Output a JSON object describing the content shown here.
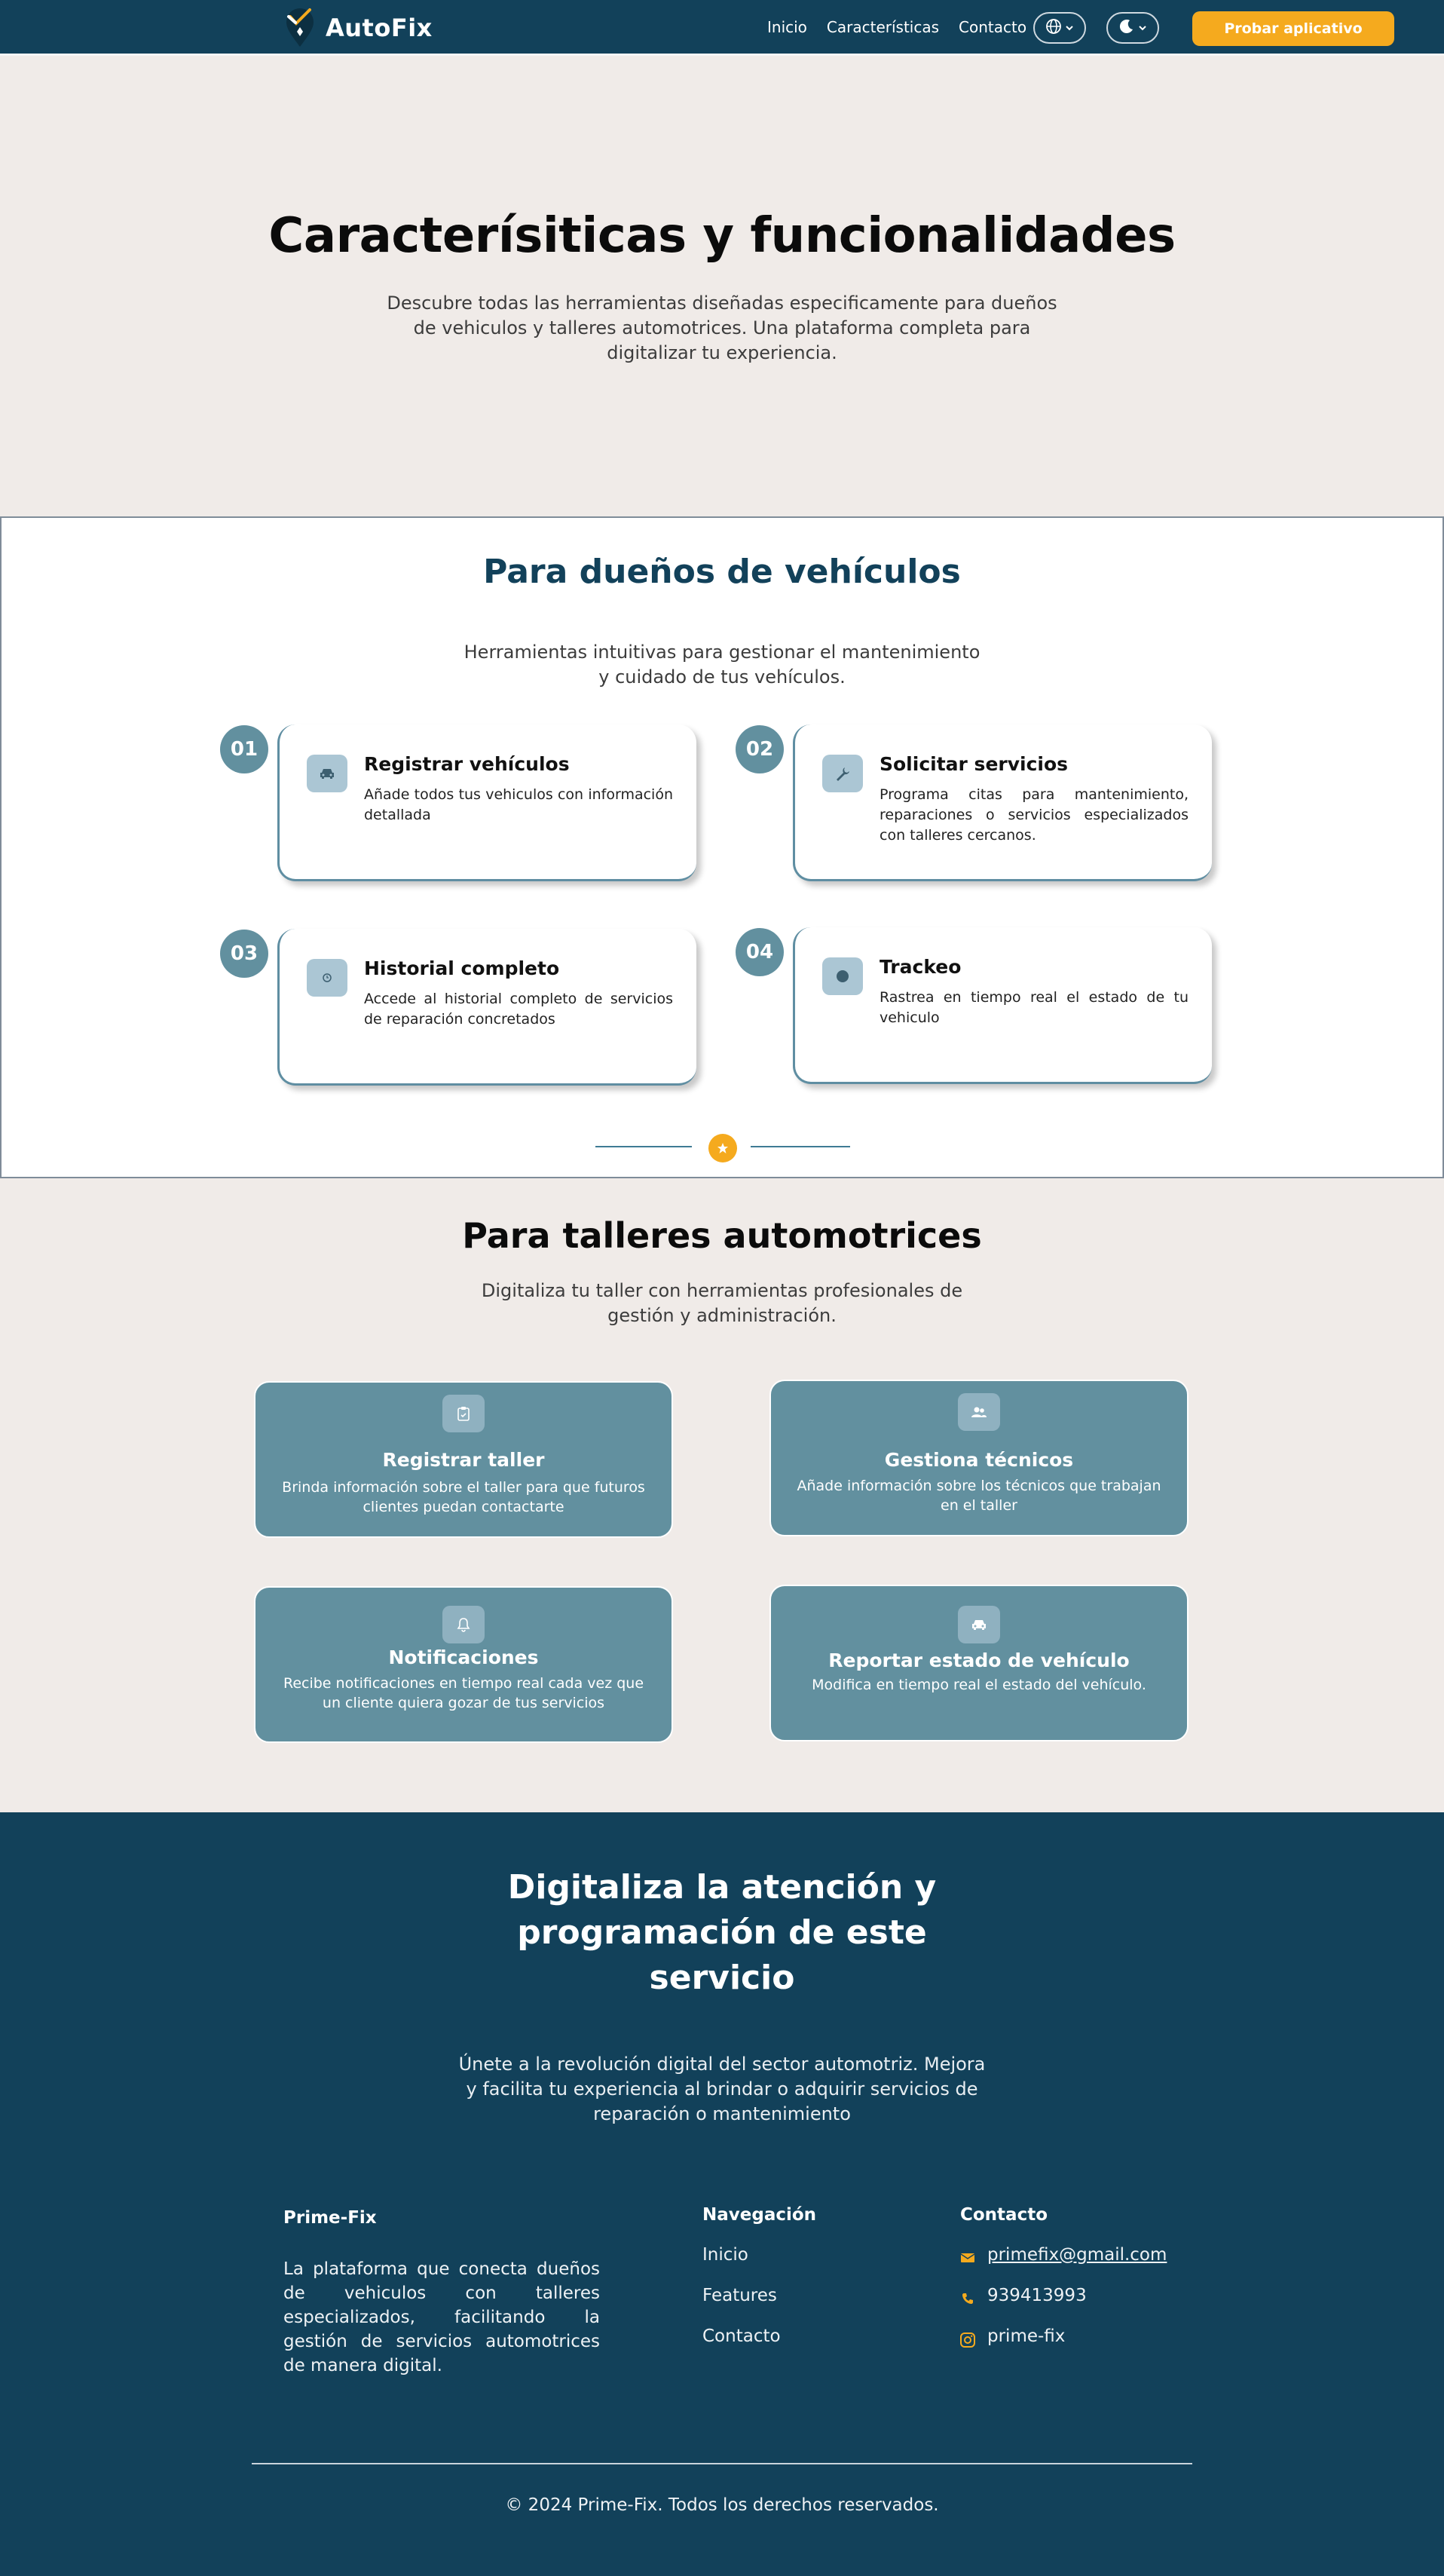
{
  "header": {
    "brand": "AutoFix",
    "nav": [
      "Inicio",
      "Características",
      "Contacto"
    ],
    "cta": "Probar aplicativo",
    "icons": [
      "globe-icon",
      "moon-icon",
      "chevron-down-icon"
    ]
  },
  "hero": {
    "title": "Caracterísiticas y funcionalidades",
    "subtitle": "Descubre todas las herramientas diseñadas especificamente para dueños de vehiculos y talleres automotrices. Una plataforma completa para digitalizar tu experiencia."
  },
  "owners": {
    "title": "Para dueños de vehículos",
    "subtitle": "Herramientas intuitivas para gestionar el mantenimiento y cuidado de tus vehículos.",
    "cards": [
      {
        "num": "01",
        "icon": "car-icon",
        "title": "Registrar vehículos",
        "desc": "Añade todos tus vehiculos con información detallada"
      },
      {
        "num": "02",
        "icon": "wrench-icon",
        "title": "Solicitar servicios",
        "desc": "Programa citas para mantenimiento, reparaciones o servicios especializados con talleres cercanos."
      },
      {
        "num": "03",
        "icon": "clock-icon",
        "title": "Historial completo",
        "desc": "Accede al historial completo de servicios de reparación concretados"
      },
      {
        "num": "04",
        "icon": "location-dot-icon",
        "title": "Trackeo",
        "desc": "Rastrea en tiempo real el estado de tu vehiculo"
      }
    ]
  },
  "workshops": {
    "title": "Para talleres automotrices",
    "subtitle": "Digitaliza tu taller con herramientas profesionales de gestión y administración.",
    "cards": [
      {
        "icon": "clipboard-icon",
        "title": "Registrar taller",
        "desc": "Brinda información sobre el taller para que futuros clientes puedan contactarte"
      },
      {
        "icon": "users-icon",
        "title": "Gestiona técnicos",
        "desc": "Añade información sobre los técnicos que trabajan en el taller"
      },
      {
        "icon": "bell-icon",
        "title": "Notificaciones",
        "desc": "Recibe notificaciones en tiempo real cada vez que un cliente quiera gozar de tus servicios"
      },
      {
        "icon": "car-icon",
        "title": "Reportar estado de vehículo",
        "desc": "Modifica en tiempo real el estado del vehículo."
      }
    ]
  },
  "footer": {
    "cta_title": "Digitaliza la atención y programación de este servicio",
    "cta_subtitle": "Únete a la revolución digital del sector automotriz. Mejora y facilita tu experiencia al brindar o adquirir servicios de reparación o mantenimiento",
    "brand": "Prime-Fix",
    "brand_desc": "La plataforma que conecta dueños de vehiculos con talleres especializados, facilitando la gestión de servicios automotrices de manera digital.",
    "nav_title": "Navegación",
    "nav_items": [
      "Inicio",
      "Features",
      "Contacto"
    ],
    "contact_title": "Contacto",
    "email": "primefix@gmail.com",
    "phone": "939413993",
    "instagram": "prime-fix",
    "copyright": "© 2024 Prime-Fix. Todos los derechos reservados."
  },
  "colors": {
    "navy": "#12415a",
    "accent": "#f5aa1e",
    "teal": "#62909f",
    "background": "#f0ebe8"
  }
}
